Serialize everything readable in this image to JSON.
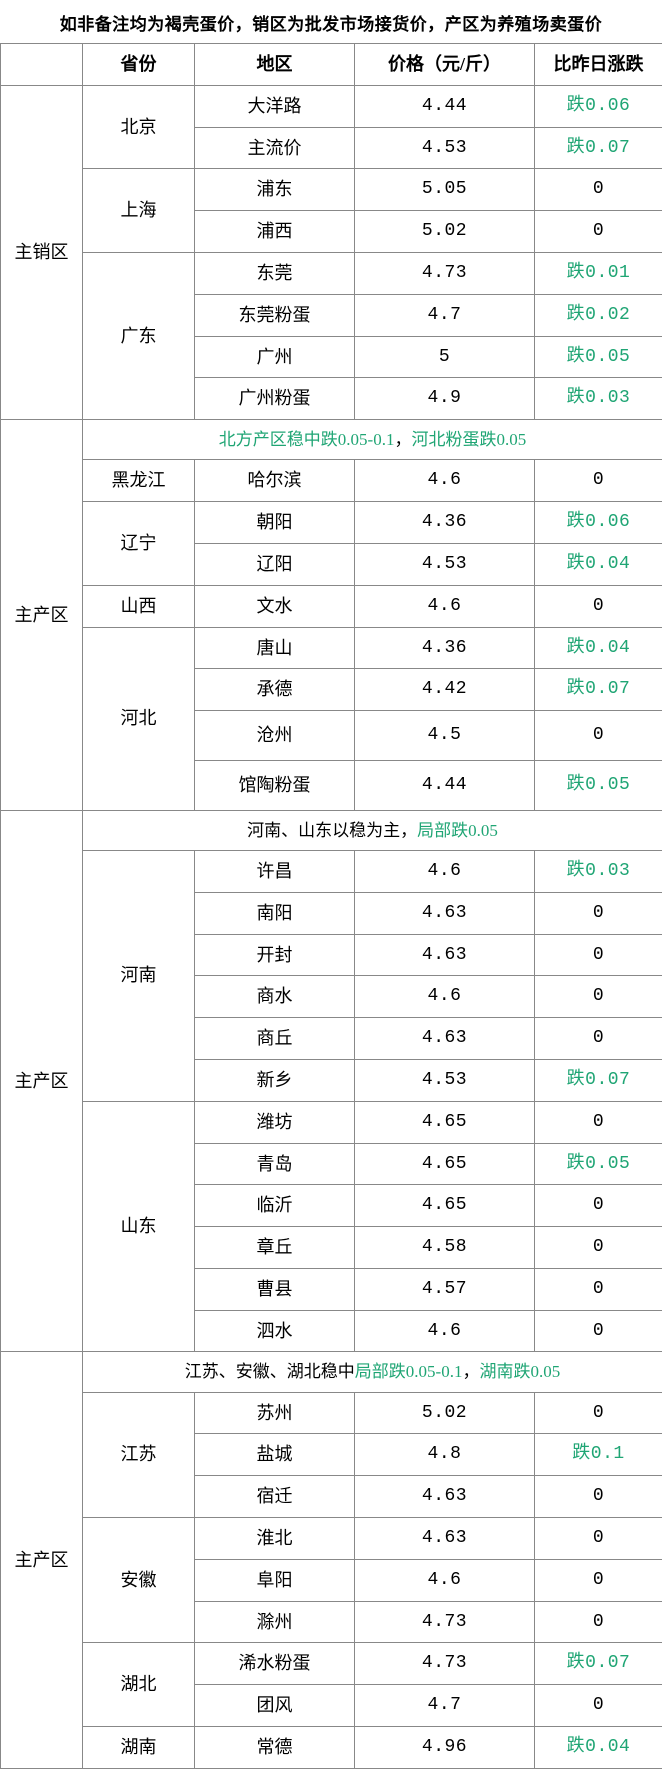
{
  "title": "如非备注均为褐壳蛋价，销区为批发市场接货价，产区为养殖场卖蛋价",
  "headers": {
    "blank": "",
    "province": "省份",
    "area": "地区",
    "price": "价格（元/斤）",
    "change": "比昨日涨跌"
  },
  "colors": {
    "green": "#1fa574",
    "border": "#888888",
    "text": "#000000"
  },
  "sections": [
    {
      "region": "主销区",
      "note": null,
      "groups": [
        {
          "province": "北京",
          "rows": [
            {
              "area": "大洋路",
              "price": "4.44",
              "change": "跌0.06",
              "chg_color": "green"
            },
            {
              "area": "主流价",
              "price": "4.53",
              "change": "跌0.07",
              "chg_color": "green"
            }
          ]
        },
        {
          "province": "上海",
          "rows": [
            {
              "area": "浦东",
              "price": "5.05",
              "change": "0",
              "chg_color": ""
            },
            {
              "area": "浦西",
              "price": "5.02",
              "change": "0",
              "chg_color": ""
            }
          ]
        },
        {
          "province": "广东",
          "rows": [
            {
              "area": "东莞",
              "price": "4.73",
              "change": "跌0.01",
              "chg_color": "green"
            },
            {
              "area": "东莞粉蛋",
              "price": "4.7",
              "change": "跌0.02",
              "chg_color": "green"
            },
            {
              "area": "广州",
              "price": "5",
              "change": "跌0.05",
              "chg_color": "green"
            },
            {
              "area": "广州粉蛋",
              "price": "4.9",
              "change": "跌0.03",
              "chg_color": "green"
            }
          ]
        }
      ]
    },
    {
      "region": "主产区",
      "note": {
        "parts": [
          {
            "text": "北方产区稳中跌0.05-0.1",
            "color": "green"
          },
          {
            "text": "，",
            "color": ""
          },
          {
            "text": "河北粉蛋跌0.05",
            "color": "green"
          }
        ]
      },
      "groups": [
        {
          "province": "黑龙江",
          "rows": [
            {
              "area": "哈尔滨",
              "price": "4.6",
              "change": "0",
              "chg_color": ""
            }
          ]
        },
        {
          "province": "辽宁",
          "rows": [
            {
              "area": "朝阳",
              "price": "4.36",
              "change": "跌0.06",
              "chg_color": "green"
            },
            {
              "area": "辽阳",
              "price": "4.53",
              "change": "跌0.04",
              "chg_color": "green"
            }
          ]
        },
        {
          "province": "山西",
          "rows": [
            {
              "area": "文水",
              "price": "4.6",
              "change": "0",
              "chg_color": ""
            }
          ]
        },
        {
          "province": "河北",
          "rows": [
            {
              "area": "唐山",
              "price": "4.36",
              "change": "跌0.04",
              "chg_color": "green"
            },
            {
              "area": "承德",
              "price": "4.42",
              "change": "跌0.07",
              "chg_color": "green"
            },
            {
              "area": "沧州",
              "price": "4.5",
              "change": "0",
              "chg_color": "",
              "tall": true
            },
            {
              "area": "馆陶粉蛋",
              "price": "4.44",
              "change": "跌0.05",
              "chg_color": "green",
              "tall": true
            }
          ]
        }
      ]
    },
    {
      "region": "主产区",
      "note": {
        "parts": [
          {
            "text": "河南、山东以稳为主，",
            "color": ""
          },
          {
            "text": "局部跌0.05",
            "color": "green"
          }
        ]
      },
      "groups": [
        {
          "province": "河南",
          "rows": [
            {
              "area": "许昌",
              "price": "4.6",
              "change": "跌0.03",
              "chg_color": "green"
            },
            {
              "area": "南阳",
              "price": "4.63",
              "change": "0",
              "chg_color": ""
            },
            {
              "area": "开封",
              "price": "4.63",
              "change": "0",
              "chg_color": ""
            },
            {
              "area": "商水",
              "price": "4.6",
              "change": "0",
              "chg_color": ""
            },
            {
              "area": "商丘",
              "price": "4.63",
              "change": "0",
              "chg_color": ""
            },
            {
              "area": "新乡",
              "price": "4.53",
              "change": "跌0.07",
              "chg_color": "green"
            }
          ]
        },
        {
          "province": "山东",
          "rows": [
            {
              "area": "潍坊",
              "price": "4.65",
              "change": "0",
              "chg_color": ""
            },
            {
              "area": "青岛",
              "price": "4.65",
              "change": "跌0.05",
              "chg_color": "green"
            },
            {
              "area": "临沂",
              "price": "4.65",
              "change": "0",
              "chg_color": ""
            },
            {
              "area": "章丘",
              "price": "4.58",
              "change": "0",
              "chg_color": ""
            },
            {
              "area": "曹县",
              "price": "4.57",
              "change": "0",
              "chg_color": ""
            },
            {
              "area": "泗水",
              "price": "4.6",
              "change": "0",
              "chg_color": ""
            }
          ]
        }
      ]
    },
    {
      "region": "主产区",
      "note": {
        "parts": [
          {
            "text": "江苏、安徽、湖北稳中",
            "color": ""
          },
          {
            "text": "局部跌0.05-0.1",
            "color": "green"
          },
          {
            "text": "，",
            "color": ""
          },
          {
            "text": "湖南跌0.05",
            "color": "green"
          }
        ]
      },
      "groups": [
        {
          "province": "江苏",
          "rows": [
            {
              "area": "苏州",
              "price": "5.02",
              "change": "0",
              "chg_color": ""
            },
            {
              "area": "盐城",
              "price": "4.8",
              "change": "跌0.1",
              "chg_color": "green"
            },
            {
              "area": "宿迁",
              "price": "4.63",
              "change": "0",
              "chg_color": ""
            }
          ]
        },
        {
          "province": "安徽",
          "rows": [
            {
              "area": "淮北",
              "price": "4.63",
              "change": "0",
              "chg_color": ""
            },
            {
              "area": "阜阳",
              "price": "4.6",
              "change": "0",
              "chg_color": ""
            },
            {
              "area": "滁州",
              "price": "4.73",
              "change": "0",
              "chg_color": ""
            }
          ]
        },
        {
          "province": "湖北",
          "rows": [
            {
              "area": "浠水粉蛋",
              "price": "4.73",
              "change": "跌0.07",
              "chg_color": "green"
            },
            {
              "area": "团风",
              "price": "4.7",
              "change": "0",
              "chg_color": ""
            }
          ]
        },
        {
          "province": "湖南",
          "rows": [
            {
              "area": "常德",
              "price": "4.96",
              "change": "跌0.04",
              "chg_color": "green"
            }
          ]
        }
      ]
    }
  ]
}
